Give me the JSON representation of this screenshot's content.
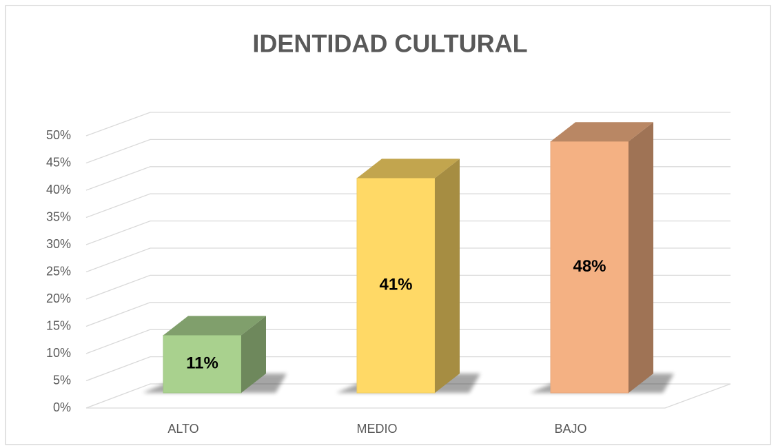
{
  "chart_data": {
    "type": "bar3d",
    "title": "IDENTIDAD CULTURAL",
    "categories": [
      "ALTO",
      "MEDIO",
      "BAJO"
    ],
    "values": [
      11,
      41,
      48
    ],
    "value_labels": [
      "11%",
      "41%",
      "48%"
    ],
    "colors": [
      "#a9d18e",
      "#ffd966",
      "#f4b183"
    ],
    "ylim": [
      0,
      50
    ],
    "yticks": [
      {
        "value": 0,
        "label": "0%"
      },
      {
        "value": 5,
        "label": "5%"
      },
      {
        "value": 10,
        "label": "10%"
      },
      {
        "value": 15,
        "label": "15%"
      },
      {
        "value": 20,
        "label": "20%"
      },
      {
        "value": 25,
        "label": "25%"
      },
      {
        "value": 30,
        "label": "30%"
      },
      {
        "value": 35,
        "label": "35%"
      },
      {
        "value": 40,
        "label": "40%"
      },
      {
        "value": 45,
        "label": "45%"
      },
      {
        "value": 50,
        "label": "50%"
      }
    ],
    "grid": true
  }
}
